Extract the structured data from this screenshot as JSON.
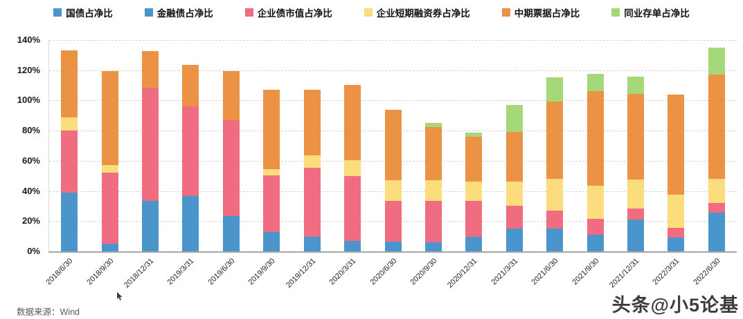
{
  "chart_data": {
    "type": "bar",
    "variant": "stacked",
    "title": "",
    "legend_position": "top",
    "grid": "horizontal-dashed",
    "categories": [
      "2018/6/30",
      "2018/9/30",
      "2018/12/31",
      "2019/3/31",
      "2019/6/30",
      "2019/9/30",
      "2019/12/31",
      "2020/3/31",
      "2020/6/30",
      "2020/9/30",
      "2020/12/31",
      "2021/3/31",
      "2021/6/30",
      "2021/9/30",
      "2021/12/31",
      "2022/3/31",
      "2022/6/30"
    ],
    "series": [
      {
        "name": "国债占净比",
        "color": "#4B95CD",
        "values": [
          39,
          5,
          33.5,
          36.5,
          23.5,
          13,
          9.5,
          7,
          6.5,
          6,
          9.5,
          15,
          15,
          11,
          21,
          9,
          25.5
        ]
      },
      {
        "name": "金融债占净比",
        "color": "#4B95CD",
        "values": [
          0,
          0,
          0,
          0,
          0,
          0,
          0,
          0,
          0,
          0,
          0,
          0,
          0,
          0,
          0,
          0,
          0
        ]
      },
      {
        "name": "企业债市值占净比",
        "color": "#F06C80",
        "values": [
          41,
          47,
          75,
          59.5,
          63.5,
          37.5,
          46,
          43,
          27,
          27.5,
          24,
          15,
          12,
          10.5,
          7.5,
          6.5,
          6.5
        ]
      },
      {
        "name": "企业短期融资券占净比",
        "color": "#FBDD7E",
        "values": [
          9,
          5,
          0,
          0,
          0,
          4,
          8,
          10.5,
          13.5,
          13.5,
          12.5,
          16,
          21,
          22,
          19,
          22,
          16
        ]
      },
      {
        "name": "中期票据占净比",
        "color": "#EB9245",
        "values": [
          44,
          62.5,
          24,
          27.5,
          32.5,
          52.5,
          43.5,
          50,
          47,
          35.5,
          30,
          33,
          51.5,
          62.5,
          57,
          66.5,
          69
        ]
      },
      {
        "name": "同业存单占净比",
        "color": "#A5D878",
        "values": [
          0,
          0,
          0,
          0,
          0,
          0,
          0,
          0,
          0,
          2.5,
          2.5,
          18,
          16,
          11.5,
          11.5,
          0,
          18
        ]
      }
    ],
    "y_axis": {
      "min": 0,
      "max": 140,
      "step": 20,
      "tick_labels": [
        "0%",
        "20%",
        "40%",
        "60%",
        "80%",
        "100%",
        "120%",
        "140%"
      ]
    },
    "totals": [
      133,
      119.5,
      132.5,
      123.5,
      119.5,
      107,
      107,
      110.5,
      94,
      85,
      78.5,
      97,
      115.5,
      117.5,
      116,
      104,
      135
    ]
  },
  "footer": {
    "source_label": "数据来源：Wind"
  },
  "watermark": {
    "text": "头条@小5论基"
  },
  "colors": {
    "gridline": "#d4d4d4",
    "axis_line": "#a6a6a6",
    "tick_text": "#1a1a1a",
    "source_text": "#595959"
  }
}
